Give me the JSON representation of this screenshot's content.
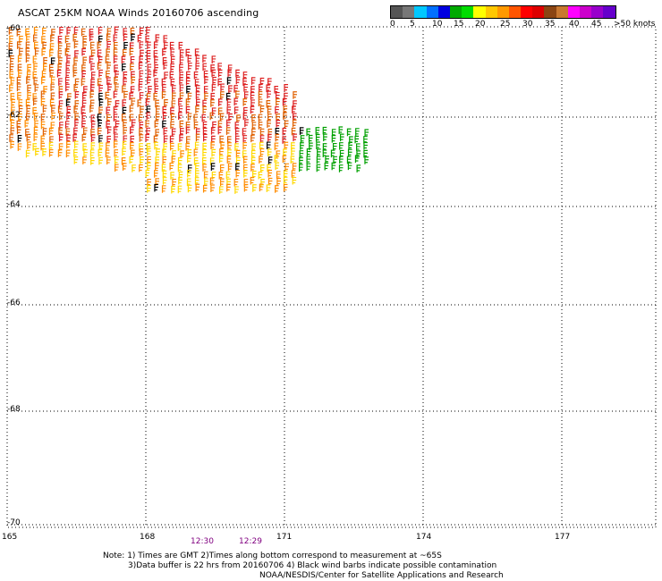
{
  "title": "ASCAT 25KM NOAA Winds 20160706 ascending",
  "scale": {
    "colors": [
      "#555555",
      "#777777",
      "#00c8ff",
      "#0070ff",
      "#0000e0",
      "#00aa00",
      "#00dd00",
      "#ffff00",
      "#ffc800",
      "#ff9900",
      "#ff5500",
      "#ff0000",
      "#dd0000",
      "#8b4513",
      "#c87830",
      "#ff00ff",
      "#cc00cc",
      "#9900cc",
      "#6600cc"
    ],
    "labels": [
      "0",
      "5",
      "10",
      "15",
      "20",
      "25",
      "30",
      "35",
      "40",
      "45",
      ">50 knots"
    ]
  },
  "lat_labels": [
    "-60",
    "-62",
    "-64",
    "-66",
    "-68",
    "-70"
  ],
  "lon_labels": [
    "165",
    "168",
    "171",
    "174",
    "177"
  ],
  "times": [
    "12:30",
    "12:29"
  ],
  "notes": {
    "line1": "Note: 1) Times are GMT 2)Times along bottom correspond to measurement at ~65S",
    "line2": "3)Data buffer is 22 hrs from 20160706 4) Black wind barbs indicate possible contamination",
    "line3": "NOAA/NESDIS/Center for Satellite Applications and Research"
  },
  "barb_colors": {
    "low": "#00a000",
    "mid": "#ffd800",
    "high": "#ff8c00",
    "higher": "#e06000",
    "top": "#dd2020",
    "contaminated": "#000000"
  }
}
